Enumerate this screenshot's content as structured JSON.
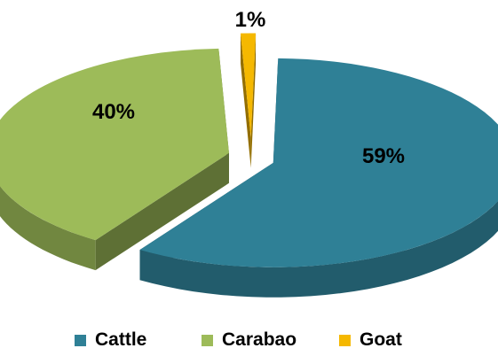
{
  "chart_data": {
    "type": "pie",
    "title": "",
    "categories": [
      "Cattle",
      "Carabao",
      "Goat"
    ],
    "values": [
      59,
      40,
      1
    ],
    "labels": [
      "59%",
      "40%",
      "1%"
    ],
    "colors": [
      "#2f8096",
      "#9dbb59",
      "#f5b800"
    ],
    "legend_position": "bottom",
    "style": "3d-exploded"
  }
}
